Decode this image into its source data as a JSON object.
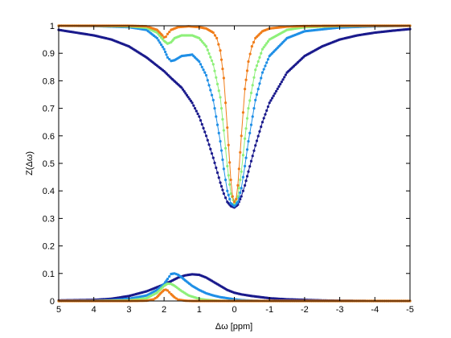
{
  "chart_data": {
    "type": "line",
    "xlabel": "Δω [ppm]",
    "ylabel": "Z(Δω)",
    "xlim": [
      5,
      -5
    ],
    "ylim": [
      0,
      1
    ],
    "x_reversed": true,
    "xticks": [
      5,
      4,
      3,
      2,
      1,
      0,
      -1,
      -2,
      -3,
      -4,
      -5
    ],
    "yticks": [
      0,
      0.1,
      0.2,
      0.3,
      0.4,
      0.5,
      0.6,
      0.7,
      0.8,
      0.9,
      1
    ],
    "xtick_labels": [
      "5",
      "4",
      "3",
      "2",
      "1",
      "0",
      "-1",
      "-2",
      "-3",
      "-4",
      "-5"
    ],
    "ytick_labels": [
      "0",
      "0.1",
      "0.2",
      "0.3",
      "0.4",
      "0.5",
      "0.6",
      "0.7",
      "0.8",
      "0.9",
      "1"
    ],
    "grid": false,
    "legend": "none",
    "marker": "dot",
    "series": [
      {
        "color": "#1a1a8c",
        "x": [
          5,
          4.5,
          4,
          3.5,
          3,
          2.5,
          2,
          1.8,
          1.5,
          1.2,
          1,
          0.8,
          0.6,
          0.4,
          0.3,
          0.2,
          0.1,
          0,
          -0.1,
          -0.2,
          -0.3,
          -0.4,
          -0.6,
          -0.8,
          -1,
          -1.5,
          -2,
          -2.5,
          -3,
          -3.5,
          -4,
          -4.5,
          -5
        ],
        "y": [
          0.985,
          0.975,
          0.965,
          0.95,
          0.925,
          0.885,
          0.835,
          0.81,
          0.775,
          0.72,
          0.67,
          0.6,
          0.52,
          0.43,
          0.39,
          0.36,
          0.345,
          0.34,
          0.35,
          0.38,
          0.42,
          0.47,
          0.565,
          0.65,
          0.72,
          0.83,
          0.89,
          0.925,
          0.95,
          0.965,
          0.975,
          0.982,
          0.988
        ]
      },
      {
        "color": "#1f8fe6",
        "x": [
          5,
          4,
          3,
          2.5,
          2.2,
          2,
          1.9,
          1.8,
          1.7,
          1.5,
          1.2,
          1,
          0.8,
          0.6,
          0.4,
          0.3,
          0.2,
          0.1,
          0,
          -0.1,
          -0.2,
          -0.3,
          -0.4,
          -0.6,
          -0.8,
          -1,
          -1.5,
          -2,
          -3,
          -4,
          -5
        ],
        "y": [
          1,
          0.999,
          0.995,
          0.985,
          0.955,
          0.915,
          0.885,
          0.872,
          0.875,
          0.89,
          0.895,
          0.87,
          0.82,
          0.73,
          0.58,
          0.48,
          0.4,
          0.355,
          0.345,
          0.36,
          0.41,
          0.49,
          0.58,
          0.73,
          0.83,
          0.89,
          0.955,
          0.98,
          0.994,
          0.998,
          1
        ]
      },
      {
        "color": "#8ef07a",
        "x": [
          5,
          4,
          3,
          2.5,
          2.2,
          2,
          1.9,
          1.8,
          1.7,
          1.5,
          1.2,
          1,
          0.8,
          0.6,
          0.4,
          0.3,
          0.2,
          0.1,
          0,
          -0.1,
          -0.2,
          -0.3,
          -0.4,
          -0.6,
          -0.8,
          -1,
          -1.5,
          -2,
          -3,
          -4,
          -5
        ],
        "y": [
          1,
          1,
          0.998,
          0.993,
          0.975,
          0.945,
          0.935,
          0.94,
          0.955,
          0.965,
          0.965,
          0.955,
          0.925,
          0.86,
          0.74,
          0.62,
          0.49,
          0.39,
          0.355,
          0.38,
          0.47,
          0.59,
          0.7,
          0.84,
          0.915,
          0.95,
          0.985,
          0.995,
          0.999,
          1,
          1
        ]
      },
      {
        "color": "#f07d1a",
        "x": [
          5,
          4,
          3,
          2.5,
          2.2,
          2.05,
          2,
          1.95,
          1.9,
          1.8,
          1.6,
          1.3,
          1,
          0.8,
          0.6,
          0.5,
          0.4,
          0.3,
          0.2,
          0.1,
          0.05,
          0,
          -0.05,
          -0.1,
          -0.2,
          -0.3,
          -0.4,
          -0.5,
          -0.6,
          -0.8,
          -1,
          -1.5,
          -2,
          -3,
          -4,
          -5
        ],
        "y": [
          1,
          1,
          1,
          0.998,
          0.985,
          0.965,
          0.958,
          0.96,
          0.97,
          0.985,
          0.995,
          0.998,
          0.995,
          0.99,
          0.975,
          0.955,
          0.91,
          0.81,
          0.63,
          0.44,
          0.38,
          0.36,
          0.37,
          0.42,
          0.6,
          0.77,
          0.87,
          0.925,
          0.955,
          0.98,
          0.99,
          0.997,
          0.999,
          1,
          1,
          1
        ]
      },
      {
        "color": "#1a1a8c",
        "x": [
          5,
          4,
          3.5,
          3,
          2.5,
          2.2,
          2,
          1.8,
          1.6,
          1.4,
          1.2,
          1,
          0.8,
          0.6,
          0.4,
          0.2,
          0,
          -0.2,
          -0.5,
          -1,
          -1.5,
          -2,
          -2.5,
          -3,
          -4,
          -5
        ],
        "y": [
          0.002,
          0.004,
          0.008,
          0.018,
          0.035,
          0.05,
          0.06,
          0.072,
          0.085,
          0.093,
          0.097,
          0.095,
          0.085,
          0.07,
          0.055,
          0.04,
          0.03,
          0.024,
          0.018,
          0.01,
          0.006,
          0.004,
          0.002,
          0.001,
          0,
          0
        ]
      },
      {
        "color": "#1f8fe6",
        "x": [
          5,
          4,
          3.5,
          3,
          2.5,
          2.2,
          2,
          1.9,
          1.8,
          1.7,
          1.6,
          1.5,
          1.4,
          1.2,
          1,
          0.8,
          0.6,
          0.4,
          0.2,
          0,
          -0.2,
          -0.5,
          -1,
          -2,
          -3,
          -4,
          -5
        ],
        "y": [
          0,
          0.001,
          0.003,
          0.008,
          0.02,
          0.04,
          0.062,
          0.08,
          0.098,
          0.1,
          0.095,
          0.086,
          0.075,
          0.055,
          0.04,
          0.028,
          0.02,
          0.014,
          0.01,
          0.006,
          0.003,
          0.001,
          0,
          0,
          0,
          0,
          0
        ]
      },
      {
        "color": "#8ef07a",
        "x": [
          5,
          4,
          3,
          2.5,
          2.2,
          2,
          1.9,
          1.8,
          1.7,
          1.5,
          1.3,
          1,
          0.8,
          0.5,
          0.2,
          0,
          -0.5,
          -1,
          -2,
          -3,
          -4,
          -5
        ],
        "y": [
          0,
          0,
          0.002,
          0.01,
          0.03,
          0.055,
          0.063,
          0.062,
          0.055,
          0.036,
          0.02,
          0.008,
          0.004,
          0.001,
          0,
          0,
          0,
          0,
          0,
          0,
          0,
          0
        ]
      },
      {
        "color": "#f07d1a",
        "x": [
          5,
          4,
          3,
          2.5,
          2.3,
          2.2,
          2.1,
          2,
          1.95,
          1.9,
          1.8,
          1.7,
          1.6,
          1.4,
          1.2,
          1,
          0.5,
          0,
          -1,
          -2,
          -3,
          -4,
          -5
        ],
        "y": [
          0,
          0,
          0,
          0.001,
          0.006,
          0.014,
          0.028,
          0.04,
          0.041,
          0.038,
          0.025,
          0.013,
          0.005,
          0.001,
          0,
          0,
          0,
          0,
          0,
          0,
          0,
          0,
          0
        ]
      }
    ]
  }
}
